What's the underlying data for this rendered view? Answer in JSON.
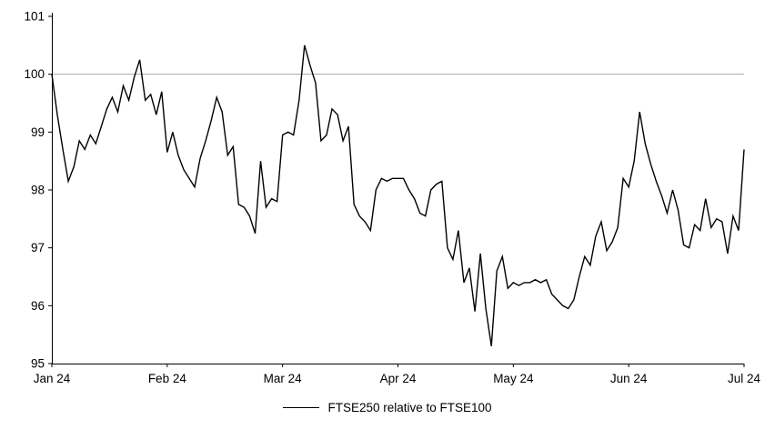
{
  "chart_data": {
    "type": "line",
    "title": "",
    "legend_position": "bottom",
    "grid": false,
    "line_color": "#000000",
    "reference_line_color": "#a6a6a6",
    "reference_line_y": 100,
    "ylim": [
      95,
      101
    ],
    "y_ticks": [
      95,
      96,
      97,
      98,
      99,
      100,
      101
    ],
    "x_tick_labels": [
      "Jan 24",
      "Feb 24",
      "Mar 24",
      "Apr 24",
      "May 24",
      "Jun 24",
      "Jul 24"
    ],
    "x_tick_indices": [
      0,
      21,
      42,
      63,
      84,
      105,
      126
    ],
    "series": [
      {
        "name": "FTSE250 relative to FTSE100",
        "values": [
          100.0,
          99.3,
          98.7,
          98.15,
          98.4,
          98.85,
          98.7,
          98.95,
          98.8,
          99.1,
          99.4,
          99.6,
          99.35,
          99.8,
          99.55,
          99.95,
          100.25,
          99.55,
          99.65,
          99.3,
          99.7,
          98.65,
          99.0,
          98.6,
          98.35,
          98.2,
          98.05,
          98.55,
          98.85,
          99.2,
          99.6,
          99.35,
          98.6,
          98.75,
          97.75,
          97.7,
          97.55,
          97.25,
          98.5,
          97.7,
          97.85,
          97.8,
          98.95,
          99.0,
          98.95,
          99.55,
          100.5,
          100.15,
          99.85,
          98.85,
          98.95,
          99.4,
          99.3,
          98.85,
          99.1,
          97.75,
          97.55,
          97.45,
          97.3,
          98.0,
          98.2,
          98.15,
          98.2,
          98.2,
          98.2,
          98.0,
          97.85,
          97.6,
          97.55,
          98.0,
          98.1,
          98.15,
          97.0,
          96.8,
          97.3,
          96.4,
          96.65,
          95.9,
          96.9,
          95.95,
          95.3,
          96.6,
          96.85,
          96.3,
          96.4,
          96.35,
          96.4,
          96.4,
          96.45,
          96.4,
          96.45,
          96.2,
          96.1,
          96.0,
          95.95,
          96.1,
          96.5,
          96.85,
          96.7,
          97.2,
          97.45,
          96.95,
          97.1,
          97.35,
          98.2,
          98.05,
          98.5,
          99.35,
          98.8,
          98.45,
          98.15,
          97.9,
          97.6,
          98.0,
          97.65,
          97.05,
          97.0,
          97.4,
          97.3,
          97.85,
          97.35,
          97.5,
          97.45,
          96.9,
          97.55,
          97.3,
          98.7
        ]
      }
    ]
  }
}
